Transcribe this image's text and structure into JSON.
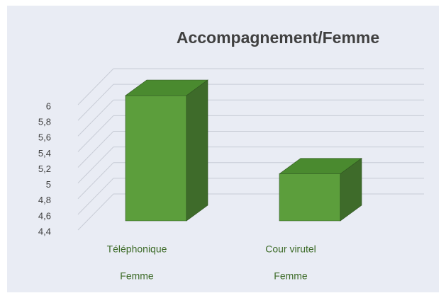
{
  "chart_data": {
    "type": "bar3d",
    "title": "Accompagnement/Femme",
    "categories": [
      "Téléphonique",
      "Cour virutel"
    ],
    "subcategories": [
      "Femme",
      "Femme"
    ],
    "values": [
      6,
      5
    ],
    "color": "#5c9e3c",
    "ylim": [
      4.4,
      6
    ],
    "yticks": [
      {
        "value": 4.4,
        "label": "4,4"
      },
      {
        "value": 4.6,
        "label": "4,6"
      },
      {
        "value": 4.8,
        "label": "4,8"
      },
      5,
      {
        "value": 5.2,
        "label": "5,2"
      },
      {
        "value": 5.4,
        "label": "5,4"
      },
      {
        "value": 5.6,
        "label": "5,6"
      },
      {
        "value": 5.8,
        "label": "5,8"
      },
      6
    ],
    "grid": true
  }
}
